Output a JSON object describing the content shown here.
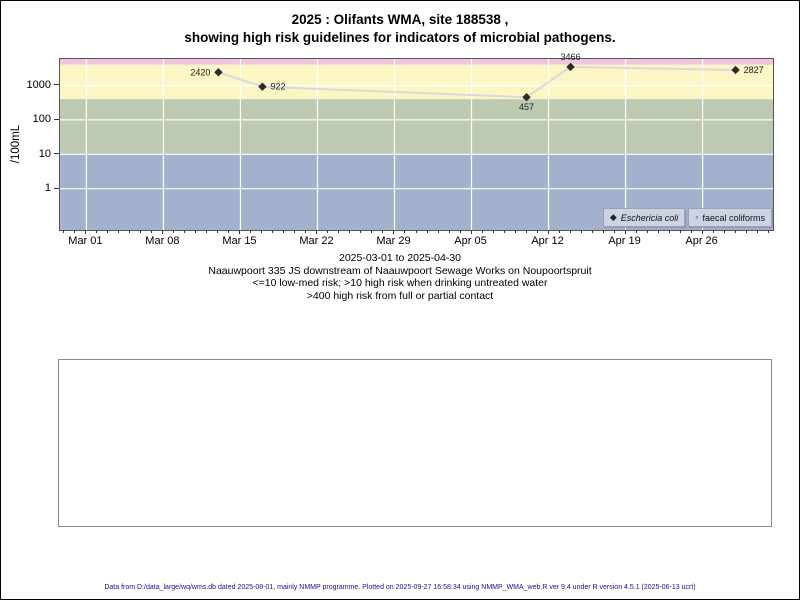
{
  "page": {
    "title_line1": "2025 : Olifants WMA, site 188538 ,",
    "title_line2": "showing high risk guidelines for indicators of microbial pathogens.",
    "footer": "Data from D:/data_large/wq/wms.db dated 2025-08-01, mainly NMMP programme. Plotted on 2025-09-27 16:58:34 using NMMP_WMA_web.R ver 9.4 under R version 4.5.1 (2025-06-13 ucrt)"
  },
  "caption": {
    "line1": "2025-03-01 to 2025-04-30",
    "line2": "Naauwpoort 335 JS downstream of Naauwpoort Sewage Works on Noupoortspruit",
    "line3": "<=10 low-med risk; >10 high risk when drinking untreated water",
    "line4": ">400 high risk from full or partial contact"
  },
  "chart_data": {
    "type": "line",
    "title": "2025 : Olifants WMA, site 188538 , showing high risk guidelines for indicators of microbial pathogens.",
    "ylabel": "/100mL",
    "y_scale": "log10",
    "y_ticks": [
      1000,
      100,
      10,
      1
    ],
    "x_tick_labels": [
      "Mar 01",
      "Mar 08",
      "Mar 15",
      "Mar 22",
      "Mar 29",
      "Apr 05",
      "Apr 12",
      "Apr 19",
      "Apr 26"
    ],
    "date_range": {
      "start": "2025-03-01",
      "end": "2025-04-30",
      "days": 60
    },
    "axis_hints": {
      "log_top": 3.77,
      "log_bottom": -1.2,
      "x_pad_days": 2.4,
      "grid": true,
      "legend_position": "bottom-right"
    },
    "risk_bands": [
      {
        "name": "band-above-4000",
        "from": 4000,
        "to": 5900,
        "color": "#f0c6dc"
      },
      {
        "name": "band-400-4000",
        "from": 400,
        "to": 4000,
        "color": "#fcf6c5"
      },
      {
        "name": "band-10-400",
        "from": 10,
        "to": 400,
        "color": "#bec9b2"
      },
      {
        "name": "band-below-10",
        "from": 0.063,
        "to": 10,
        "color": "#a3b2cc"
      }
    ],
    "grid_color": "#ffffff",
    "series": [
      {
        "name": "Eschericia coli",
        "marker": "filled-diamond",
        "line_color": "#d9d9d9",
        "marker_color": "#2a2a2a",
        "points": [
          {
            "date": "2025-03-13",
            "day": 12,
            "value": 2420,
            "label": "2420",
            "label_pos": "left"
          },
          {
            "date": "2025-03-17",
            "day": 16,
            "value": 922,
            "label": "922",
            "label_pos": "right"
          },
          {
            "date": "2025-04-10",
            "day": 40,
            "value": 457,
            "label": "457",
            "label_pos": "below"
          },
          {
            "date": "2025-04-14",
            "day": 44,
            "value": 3466,
            "label": "3466",
            "label_pos": "above"
          },
          {
            "date": "2025-04-29",
            "day": 59,
            "value": 2827,
            "label": "2827",
            "label_pos": "right"
          }
        ]
      },
      {
        "name": "faecal coliforms",
        "marker": "open-circle",
        "points": []
      }
    ]
  }
}
